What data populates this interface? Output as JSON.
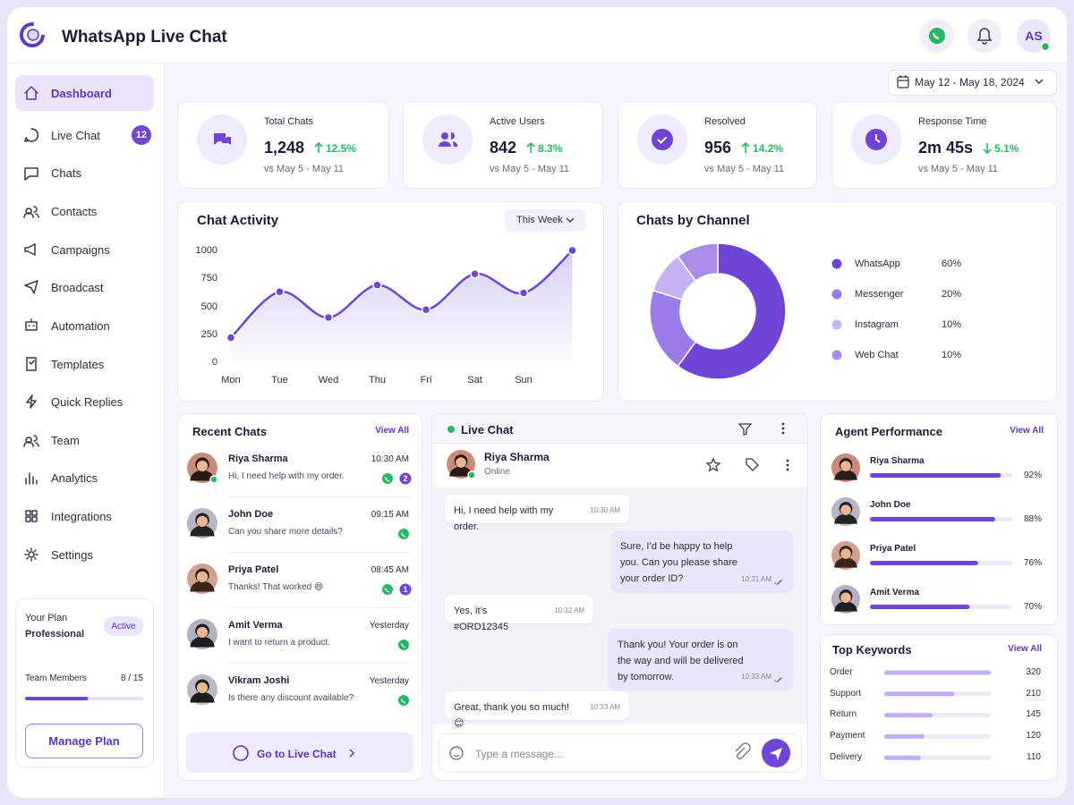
{
  "header": {
    "title": "WhatsApp Live Chat",
    "avatar": "AS"
  },
  "sidebar": {
    "nav": [
      {
        "label": "Dashboard"
      },
      {
        "label": "Live Chat",
        "badge": "12"
      },
      {
        "label": "Chats"
      },
      {
        "label": "Contacts"
      },
      {
        "label": "Campaigns"
      },
      {
        "label": "Broadcast"
      },
      {
        "label": "Automation"
      },
      {
        "label": "Templates"
      },
      {
        "label": "Quick Replies"
      },
      {
        "label": "Team"
      },
      {
        "label": "Analytics"
      },
      {
        "label": "Integrations"
      },
      {
        "label": "Settings"
      }
    ],
    "plan": {
      "title": "Your Plan",
      "name": "Professional",
      "status": "Active",
      "members_label": "Team Members",
      "members_text": "8 / 15",
      "members_used": 8,
      "members_total": 15,
      "button": "Manage Plan"
    }
  },
  "date_range": "May 12 - May 18, 2024",
  "stats": [
    {
      "label": "Total Chats",
      "value": "1,248",
      "change": "12.5%",
      "direction": "up",
      "compare": "vs May 5 - May 11"
    },
    {
      "label": "Active Users",
      "value": "842",
      "change": "8.3%",
      "direction": "up",
      "compare": "vs May 5 - May 11"
    },
    {
      "label": "Resolved",
      "value": "956",
      "change": "14.2%",
      "direction": "up",
      "compare": "vs May 5 - May 11"
    },
    {
      "label": "Response Time",
      "value": "2m 45s",
      "change": "5.1%",
      "direction": "down",
      "compare": "vs May 5 - May 11"
    }
  ],
  "chart_data": [
    {
      "type": "line",
      "title": "Chat Activity",
      "filter": "This Week",
      "categories": [
        "Mon",
        "Tue",
        "Wed",
        "Thu",
        "Fri",
        "Sat",
        "Sun",
        null
      ],
      "values": [
        220,
        630,
        400,
        690,
        470,
        790,
        620,
        1000
      ],
      "ylim": [
        0,
        1000
      ],
      "yticks": [
        0,
        250,
        500,
        750,
        1000
      ],
      "color": "#6f45d8",
      "grid": false
    },
    {
      "type": "pie",
      "title": "Chats by Channel",
      "categories": [
        "WhatsApp",
        "Messenger",
        "Instagram",
        "Web Chat"
      ],
      "values": [
        60,
        20,
        10,
        10
      ],
      "value_labels": [
        "60%",
        "20%",
        "10%",
        "10%"
      ],
      "colors": [
        "#6f45d8",
        "#9a7ce8",
        "#c7b3f4",
        "#a88ee9"
      ]
    }
  ],
  "recent_chats": {
    "title": "Recent Chats",
    "view_all": "View All",
    "button": "Go to Live Chat",
    "items": [
      {
        "name": "Riya Sharma",
        "time": "10:30 AM",
        "message": "Hi, I need help with my order.",
        "unread": "2"
      },
      {
        "name": "John Doe",
        "time": "09:15 AM",
        "message": "Can you share more details?"
      },
      {
        "name": "Priya Patel",
        "time": "08:45 AM",
        "message": "Thanks! That worked 😄",
        "unread": "1"
      },
      {
        "name": "Amit Verma",
        "time": "Yesterday",
        "message": "I want to return a product."
      },
      {
        "name": "Vikram Joshi",
        "time": "Yesterday",
        "message": "Is there any discount available?"
      }
    ]
  },
  "live_chat": {
    "title": "Live Chat",
    "contact": {
      "name": "Riya Sharma",
      "status": "Online"
    },
    "messages": [
      {
        "direction": "in",
        "text": "Hi, I need help with my order.",
        "time": "10:30 AM"
      },
      {
        "direction": "out",
        "text": "Sure, I’d be happy to help you. Can you please share your order ID?",
        "time": "10:31 AM"
      },
      {
        "direction": "in",
        "text": "Yes, it’s #ORD12345",
        "time": "10:32 AM"
      },
      {
        "direction": "out",
        "text": "Thank you! Your order is on the way and will be delivered by tomorrow.",
        "time": "10:33 AM"
      },
      {
        "direction": "in",
        "text": "Great, thank you so much! 😊",
        "time": "10:33 AM"
      }
    ],
    "placeholder": "Type a message..."
  },
  "agents": {
    "title": "Agent Performance",
    "view_all": "View All",
    "xlim": [
      0,
      100
    ],
    "items": [
      {
        "name": "Riya Sharma",
        "score": 92,
        "score_label": "92%"
      },
      {
        "name": "John Doe",
        "score": 88,
        "score_label": "88%"
      },
      {
        "name": "Priya Patel",
        "score": 76,
        "score_label": "76%"
      },
      {
        "name": "Amit Verma",
        "score": 70,
        "score_label": "70%"
      }
    ]
  },
  "keywords": {
    "title": "Top Keywords",
    "view_all": "View All",
    "xlim": [
      0,
      320
    ],
    "items": [
      {
        "label": "Order",
        "count": 320
      },
      {
        "label": "Support",
        "count": 210
      },
      {
        "label": "Return",
        "count": 145
      },
      {
        "label": "Payment",
        "count": 120
      },
      {
        "label": "Delivery",
        "count": 110
      }
    ]
  }
}
